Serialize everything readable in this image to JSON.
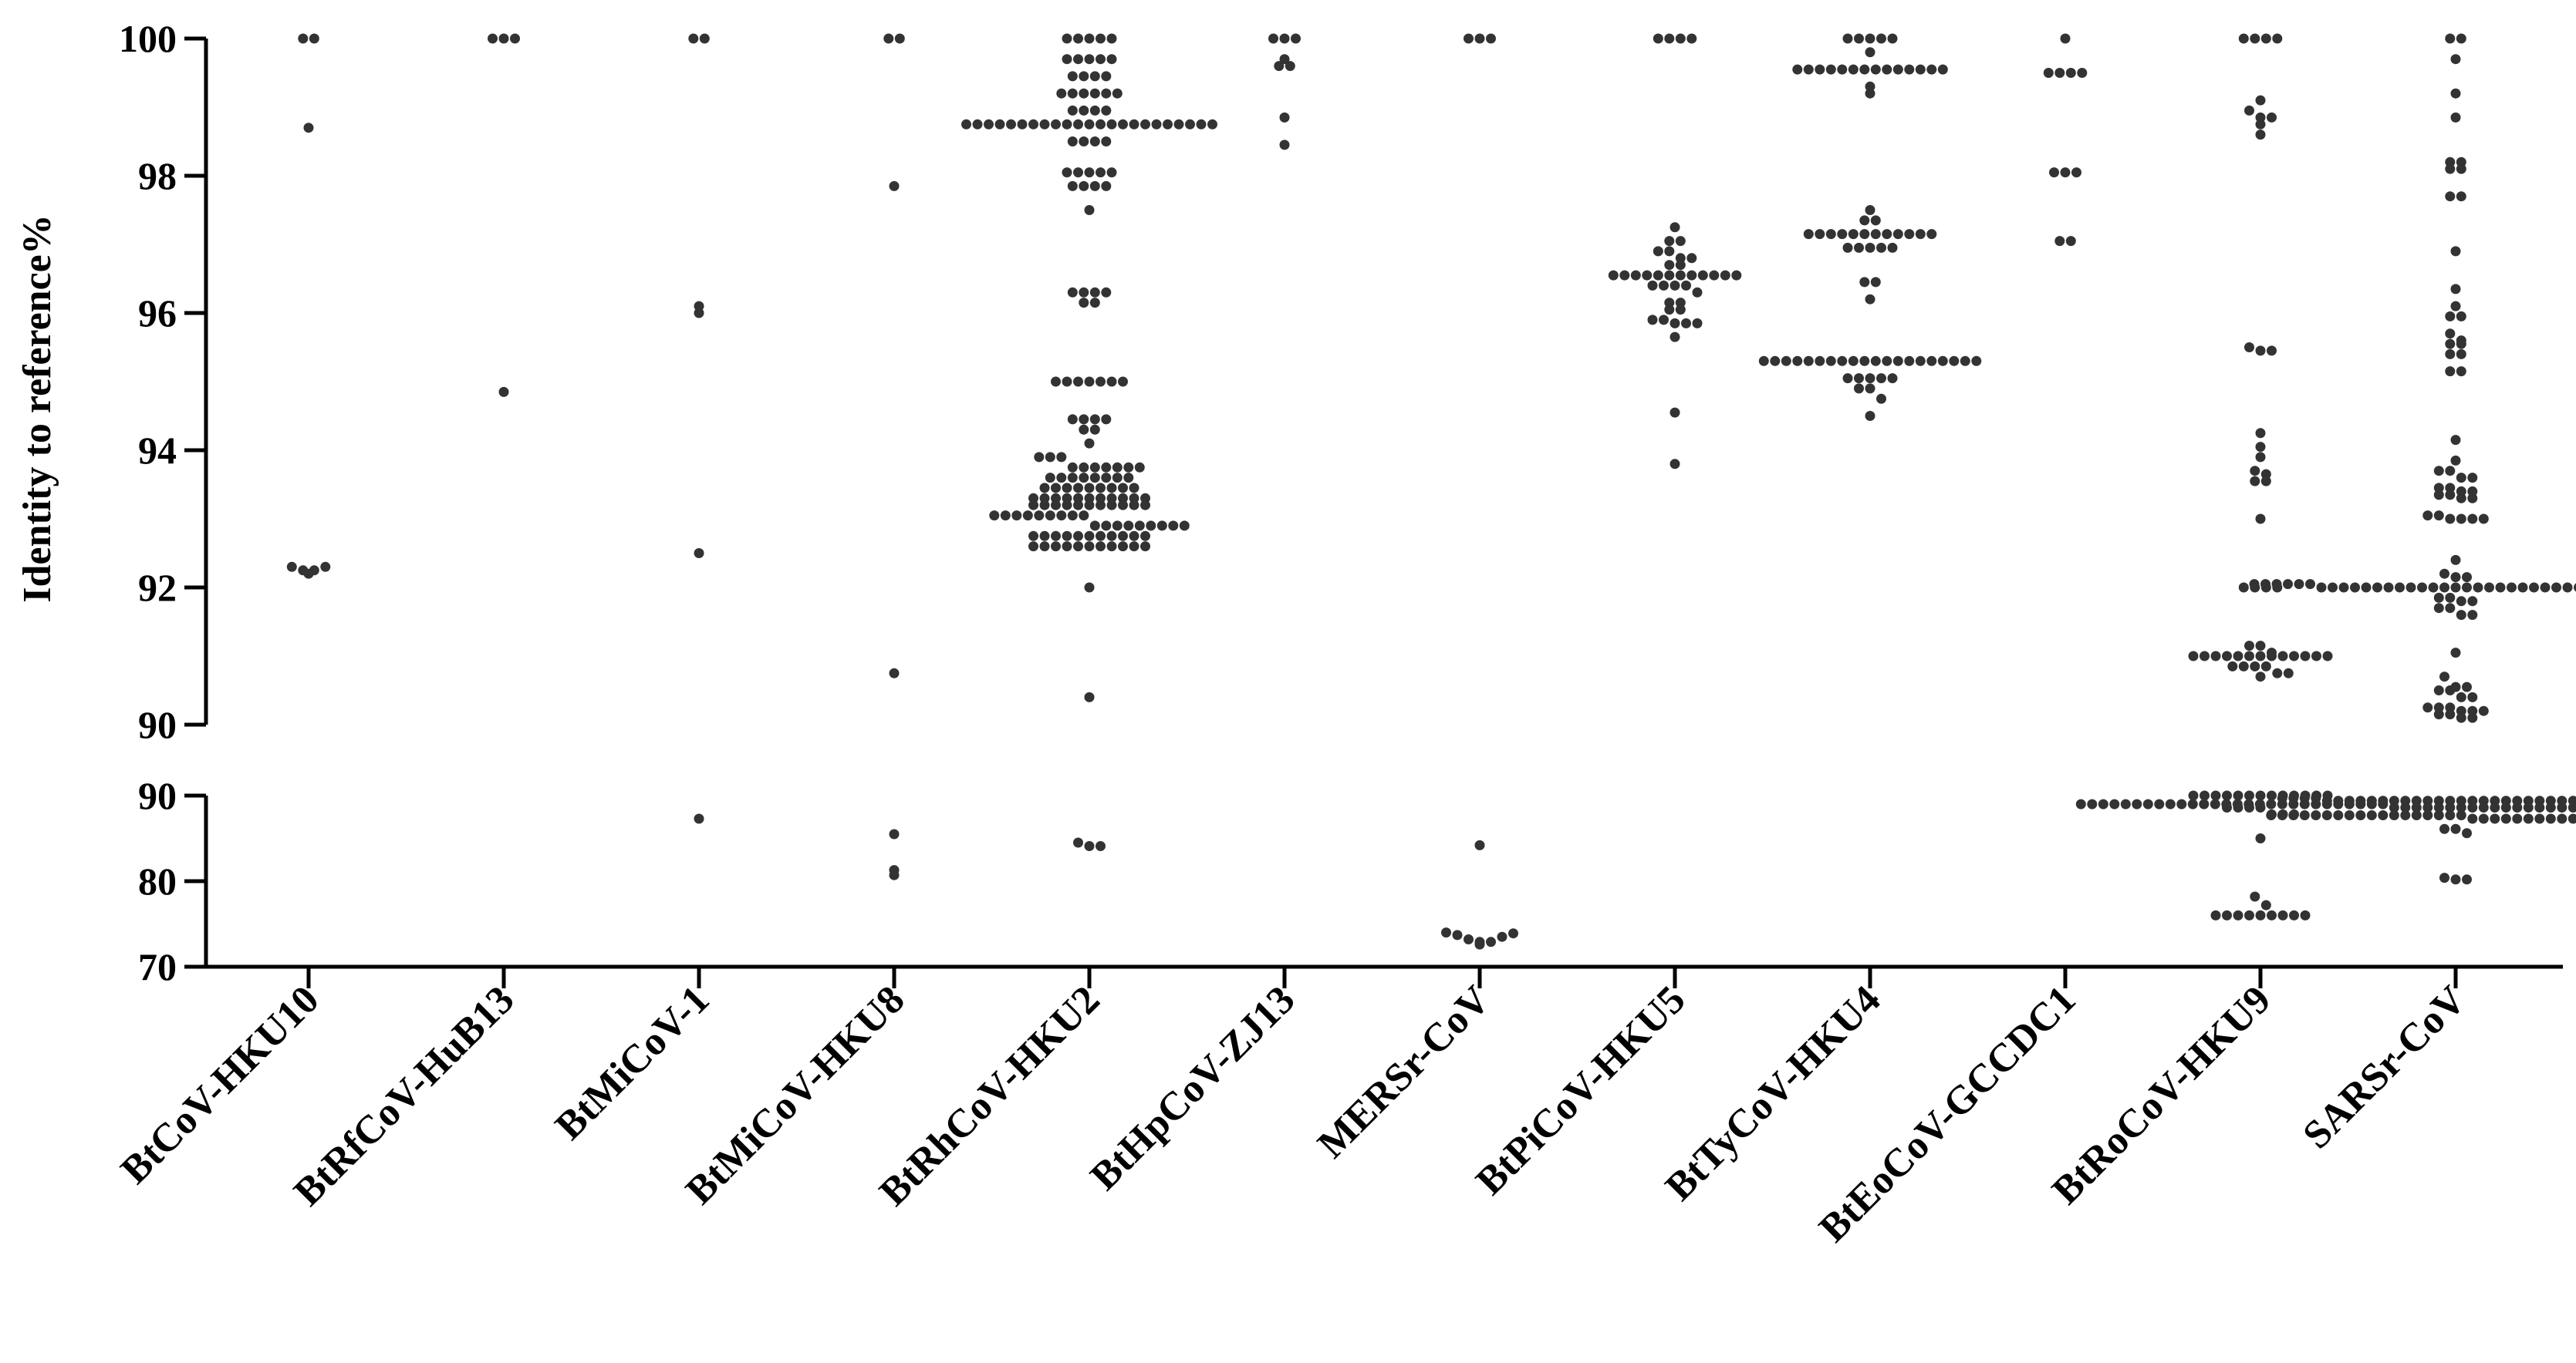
{
  "chart_data": {
    "type": "scatter",
    "style": "beeswarm dot plot with broken y-axis",
    "title": "",
    "xlabel": "",
    "ylabel": "Identity to reference%",
    "colors": {
      "dot": "#333333",
      "axis": "#000000"
    },
    "y_axis": {
      "upper_segment": {
        "range": [
          90,
          100
        ],
        "ticks": [
          "90",
          "92",
          "94",
          "96",
          "98",
          "100"
        ]
      },
      "lower_segment": {
        "range": [
          70,
          90
        ],
        "ticks": [
          "70",
          "80",
          "90"
        ]
      }
    },
    "categories": [
      "BtCoV-HKU10",
      "BtRfCoV-HuB13",
      "BtMiCoV-1",
      "BtMiCoV-HKU8",
      "BtRhCoV-HKU2",
      "BtHpCoV-ZJ13",
      "MERSr-CoV",
      "BtPiCoV-HKU5",
      "BtTyCoV-HKU4",
      "BtEoCoV-GCCDC1",
      "BtRoCoV-HKU9",
      "SARSr-CoV"
    ],
    "series": [
      {
        "name": "BtCoV-HKU10",
        "values": [
          100,
          100,
          98.7,
          92.3,
          92.25,
          92.2,
          92.25,
          92.3
        ]
      },
      {
        "name": "BtRfCoV-HuB13",
        "values": [
          100,
          100,
          100,
          94.85
        ]
      },
      {
        "name": "BtMiCoV-1",
        "values": [
          100,
          100,
          96.1,
          96.0,
          92.5,
          87.3
        ]
      },
      {
        "name": "BtMiCoV-HKU8",
        "values": [
          100,
          100,
          97.85,
          90.75,
          85.5,
          81.3,
          80.7
        ]
      },
      {
        "name": "BtRhCoV-HKU2",
        "values": [
          100,
          100,
          100,
          100,
          100,
          99.7,
          99.7,
          99.7,
          99.7,
          99.7,
          99.45,
          99.45,
          99.45,
          99.45,
          99.2,
          99.2,
          99.2,
          99.2,
          99.2,
          99.2,
          98.95,
          98.95,
          98.95,
          98.95,
          98.75,
          98.75,
          98.75,
          98.75,
          98.75,
          98.75,
          98.75,
          98.75,
          98.75,
          98.75,
          98.75,
          98.75,
          98.75,
          98.75,
          98.75,
          98.75,
          98.75,
          98.75,
          98.75,
          98.75,
          98.75,
          98.75,
          98.75,
          98.5,
          98.5,
          98.5,
          98.5,
          98.05,
          98.05,
          98.05,
          98.05,
          98.05,
          97.85,
          97.85,
          97.85,
          97.85,
          97.5,
          96.3,
          96.3,
          96.3,
          96.3,
          96.15,
          96.15,
          95.0,
          95.0,
          95.0,
          95.0,
          95.0,
          95.0,
          95.0,
          94.45,
          94.45,
          94.45,
          94.45,
          94.3,
          94.3,
          94.1,
          93.9,
          93.9,
          93.9,
          93.75,
          93.75,
          93.75,
          93.75,
          93.75,
          93.75,
          93.75,
          93.6,
          93.6,
          93.6,
          93.6,
          93.6,
          93.6,
          93.6,
          93.6,
          93.45,
          93.45,
          93.45,
          93.45,
          93.45,
          93.45,
          93.45,
          93.45,
          93.45,
          93.3,
          93.3,
          93.3,
          93.3,
          93.3,
          93.3,
          93.3,
          93.3,
          93.3,
          93.3,
          93.3,
          93.2,
          93.2,
          93.2,
          93.2,
          93.2,
          93.2,
          93.2,
          93.2,
          93.2,
          93.2,
          93.2,
          93.05,
          93.05,
          93.05,
          93.05,
          93.05,
          93.05,
          93.05,
          93.05,
          93.05,
          92.9,
          92.9,
          92.9,
          92.9,
          92.9,
          92.9,
          92.9,
          92.9,
          92.9,
          92.75,
          92.75,
          92.75,
          92.75,
          92.75,
          92.75,
          92.75,
          92.75,
          92.75,
          92.75,
          92.75,
          92.6,
          92.6,
          92.6,
          92.6,
          92.6,
          92.6,
          92.6,
          92.6,
          92.6,
          92.6,
          92.6,
          92.0,
          90.4,
          84.5,
          84.1,
          84.1
        ]
      },
      {
        "name": "BtHpCoV-ZJ13",
        "values": [
          100,
          100,
          100,
          99.7,
          99.6,
          99.6,
          98.85,
          98.45
        ]
      },
      {
        "name": "MERSr-CoV",
        "values": [
          100,
          100,
          100,
          84.2,
          74.0,
          73.7,
          73.2,
          72.9,
          72.6,
          72.9,
          73.5,
          73.9
        ]
      },
      {
        "name": "BtPiCoV-HKU5",
        "values": [
          100,
          100,
          100,
          100,
          97.25,
          97.05,
          97.05,
          96.9,
          96.9,
          96.8,
          96.8,
          96.7,
          96.7,
          96.55,
          96.55,
          96.55,
          96.55,
          96.55,
          96.55,
          96.55,
          96.55,
          96.55,
          96.55,
          96.55,
          96.55,
          96.4,
          96.4,
          96.4,
          96.4,
          96.3,
          96.15,
          96.15,
          96.05,
          96.05,
          95.9,
          95.9,
          95.85,
          95.85,
          95.85,
          95.65,
          94.55,
          93.8
        ]
      },
      {
        "name": "BtTyCoV-HKU4",
        "values": [
          100,
          100,
          100,
          100,
          100,
          99.8,
          99.55,
          99.55,
          99.55,
          99.55,
          99.55,
          99.55,
          99.55,
          99.55,
          99.55,
          99.55,
          99.55,
          99.55,
          99.55,
          99.55,
          99.3,
          99.2,
          97.5,
          97.35,
          97.35,
          97.15,
          97.15,
          97.15,
          97.15,
          97.15,
          97.15,
          97.15,
          97.15,
          97.15,
          97.15,
          97.15,
          97.15,
          96.95,
          96.95,
          96.95,
          96.95,
          96.95,
          96.45,
          96.45,
          96.2,
          95.3,
          95.3,
          95.3,
          95.3,
          95.3,
          95.3,
          95.3,
          95.3,
          95.3,
          95.3,
          95.3,
          95.3,
          95.3,
          95.3,
          95.3,
          95.3,
          95.3,
          95.3,
          95.3,
          95.3,
          95.05,
          95.05,
          95.05,
          95.05,
          95.05,
          94.9,
          94.9,
          94.75,
          94.5
        ]
      },
      {
        "name": "BtEoCoV-GCCDC1",
        "values": [
          100,
          99.5,
          99.5,
          99.5,
          99.5,
          98.05,
          98.05,
          98.05,
          97.05,
          97.05
        ]
      },
      {
        "name": "BtRoCoV-HKU9",
        "values": [
          100,
          100,
          100,
          100,
          99.1,
          98.95,
          98.85,
          98.85,
          98.75,
          98.6,
          95.5,
          95.45,
          95.45,
          94.25,
          94.05,
          93.9,
          93.7,
          93.65,
          93.55,
          93.55,
          93.0,
          92.0,
          92.0,
          92.0,
          92.0,
          91.15,
          91.15,
          91.05,
          91.0,
          91.0,
          91.0,
          91.0,
          91.0,
          91.0,
          91.0,
          91.0,
          91.0,
          91.0,
          91.0,
          91.0,
          91.0,
          90.85,
          90.85,
          90.85,
          90.85,
          90.75,
          90.75,
          90.7,
          90.0,
          90.0,
          90.0,
          90.0,
          90.0,
          90.0,
          90.0,
          90.0,
          90.0,
          90.0,
          90.0,
          90.0,
          90.0,
          88.6,
          88.6,
          88.6,
          88.6,
          87.8,
          87.8,
          87.8,
          85.0,
          78.2,
          77.2,
          76.0,
          76.0,
          76.0,
          76.0,
          76.0,
          76.0,
          76.0,
          76.0,
          76.0
        ]
      },
      {
        "name": "SARSr-CoV",
        "values": [
          100,
          100,
          99.7,
          99.2,
          98.85,
          98.2,
          98.2,
          98.1,
          98.1,
          97.7,
          97.7,
          96.9,
          96.35,
          96.1,
          95.95,
          95.95,
          95.7,
          95.6,
          95.55,
          95.55,
          95.4,
          95.4,
          95.15,
          95.15,
          94.15,
          93.85,
          93.7,
          93.7,
          93.6,
          93.6,
          93.45,
          93.45,
          93.4,
          93.4,
          93.35,
          93.35,
          93.3,
          93.3,
          93.05,
          93.05,
          93.0,
          93.0,
          93.0,
          93.0,
          92.4,
          92.2,
          92.15,
          92.15,
          92.05,
          92.05,
          92.05,
          92.05,
          92.05,
          92.05,
          92.0,
          92.0,
          92.0,
          92.0,
          92.0,
          92.0,
          92.0,
          92.0,
          92.0,
          92.0,
          92.0,
          92.0,
          92.0,
          92.0,
          92.0,
          92.0,
          92.0,
          92.0,
          92.0,
          92.0,
          92.0,
          92.0,
          92.0,
          92.0,
          92.0,
          92.0,
          92.0,
          92.0,
          91.9,
          91.9,
          91.9,
          91.85,
          91.85,
          91.8,
          91.8,
          91.7,
          91.7,
          91.6,
          91.6,
          91.05,
          90.7,
          90.55,
          90.55,
          90.5,
          90.5,
          90.4,
          90.4,
          90.25,
          90.25,
          90.25,
          90.2,
          90.2,
          90.2,
          90.15,
          90.15,
          90.1,
          90.1,
          89.7,
          89.7,
          89.7,
          89.7,
          89.4,
          89.4,
          89.4,
          89.4,
          89.4,
          89.4,
          89.4,
          89.4,
          89.4,
          89.4,
          89.4,
          89.4,
          89.4,
          89.4,
          89.4,
          89.4,
          89.4,
          89.4,
          89.4,
          89.4,
          89.4,
          89.4,
          89.4,
          89.4,
          89.4,
          89.4,
          89.4,
          89.4,
          89.0,
          89.0,
          89.0,
          89.0,
          89.0,
          89.0,
          89.0,
          89.0,
          89.0,
          89.0,
          89.0,
          89.0,
          89.0,
          89.0,
          89.0,
          89.0,
          89.0,
          89.0,
          89.0,
          89.0,
          89.0,
          89.0,
          89.0,
          89.0,
          89.0,
          89.0,
          89.0,
          89.0,
          88.6,
          88.6,
          88.6,
          88.6,
          88.6,
          88.6,
          88.6,
          88.6,
          88.6,
          88.6,
          88.6,
          88.6,
          88.6,
          88.6,
          88.6,
          88.6,
          88.6,
          88.6,
          88.6,
          88.6,
          88.6,
          88.6,
          88.2,
          88.2,
          88.2,
          88.2,
          88.2,
          88.2,
          88.2,
          88.2,
          88.2,
          88.2,
          88.2,
          88.2,
          88.2,
          88.2,
          88.2,
          88.2,
          88.2,
          88.2,
          87.7,
          87.7,
          87.7,
          87.7,
          87.7,
          87.7,
          87.7,
          87.7,
          87.7,
          87.7,
          87.7,
          87.7,
          87.7,
          87.7,
          87.7,
          87.7,
          87.7,
          87.7,
          87.3,
          87.3,
          87.3,
          87.3,
          87.3,
          87.3,
          87.3,
          87.3,
          87.3,
          87.3,
          86.9,
          86.9,
          86.9,
          86.9,
          86.9,
          86.9,
          86.1,
          86.1,
          85.6,
          80.4,
          80.2,
          80.2
        ]
      }
    ]
  }
}
